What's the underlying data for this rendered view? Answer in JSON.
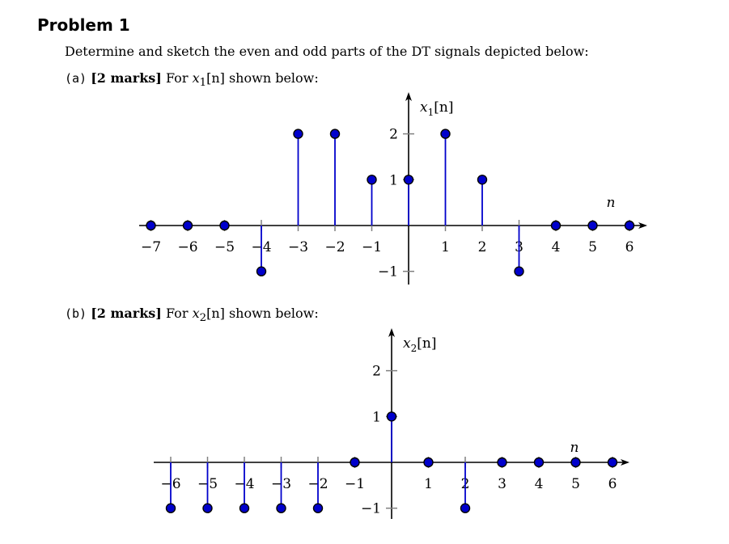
{
  "heading": "Problem 1",
  "intro": "Determine and sketch the even and odd parts of the DT signals depicted below:",
  "parts": [
    {
      "label": "(a)",
      "marks": "[2 marks]",
      "before": "For",
      "sym": "x",
      "sub": "1",
      "arg": "[n]",
      "after": "shown below:"
    },
    {
      "label": "(b)",
      "marks": "[2 marks]",
      "before": "For",
      "sym": "x",
      "sub": "2",
      "arg": "[n]",
      "after": "shown below:"
    }
  ],
  "colors": {
    "stem": "#0000cc",
    "marker_fill": "#0000cc",
    "marker_edge": "#000000",
    "axis": "#000000",
    "tick": "#808080"
  },
  "chart_data": [
    {
      "type": "stem",
      "ylabel_sym": "x",
      "ylabel_sub": "1",
      "ylabel_arg": "[n]",
      "xlabel": "n",
      "x": [
        -7,
        -6,
        -5,
        -4,
        -3,
        -2,
        -1,
        0,
        1,
        2,
        3,
        4,
        5,
        6
      ],
      "values": [
        0,
        0,
        0,
        -1,
        2,
        2,
        1,
        1,
        2,
        1,
        -1,
        0,
        0,
        0
      ],
      "xtick_labels": [
        "−7",
        "−6",
        "−5",
        "−4",
        "−3",
        "−2",
        "−1",
        "1",
        "2",
        "3",
        "4",
        "5",
        "6"
      ],
      "ytick_labels": [
        "2",
        "1",
        "−1"
      ]
    },
    {
      "type": "stem",
      "ylabel_sym": "x",
      "ylabel_sub": "2",
      "ylabel_arg": "[n]",
      "xlabel": "n",
      "x": [
        -6,
        -5,
        -4,
        -3,
        -2,
        -1,
        0,
        1,
        2,
        3,
        4,
        5,
        6
      ],
      "values": [
        -1,
        -1,
        -1,
        -1,
        -1,
        0,
        1,
        0,
        -1,
        0,
        0,
        0,
        0
      ],
      "xtick_labels": [
        "−6",
        "−5",
        "−4",
        "−3",
        "−2",
        "−1",
        "1",
        "2",
        "3",
        "4",
        "5",
        "6"
      ],
      "ytick_labels": [
        "2",
        "1",
        "−1"
      ]
    }
  ]
}
